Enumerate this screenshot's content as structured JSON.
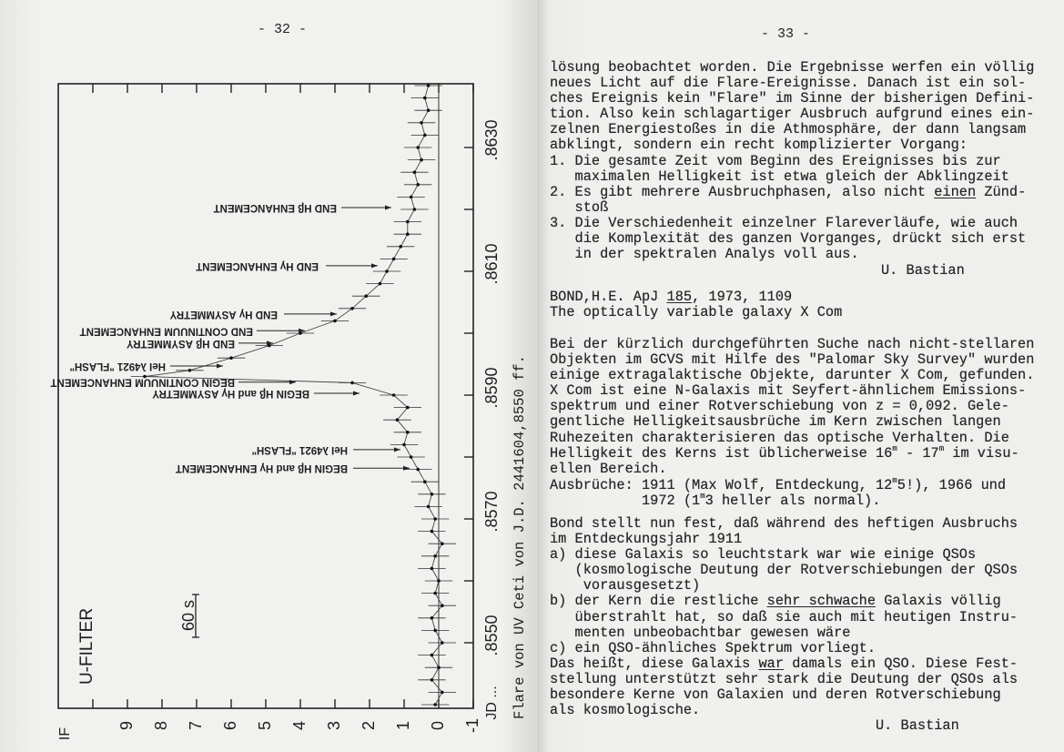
{
  "left_page": {
    "page_number": "- 32 -"
  },
  "right_page": {
    "page_number": "- 33 -",
    "blocks": [
      {
        "lines": [
          [
            {
              "t": "lösung beobachtet worden. Die Ergebnisse werfen ein völlig"
            }
          ],
          [
            {
              "t": "neues Licht auf die Flare-Ereignisse. Danach ist ein sol-"
            }
          ],
          [
            {
              "t": "ches Ereignis kein \"Flare\" im Sinne der bisherigen Defini-"
            }
          ],
          [
            {
              "t": "tion. Also kein schlagartiger Ausbruch aufgrund eines ein-"
            }
          ],
          [
            {
              "t": "zelnen Energiestoßes in die Athmosphäre, der dann langsam"
            }
          ],
          [
            {
              "t": "abklingt, sondern ein recht komplizierter Vorgang:"
            }
          ],
          [
            {
              "t": "1. Die gesamte Zeit vom Beginn des Ereignisses bis zur"
            }
          ],
          [
            {
              "t": "   maximalen Helligkeit ist etwa gleich der Abklingzeit"
            }
          ],
          [
            {
              "t": "2. Es gibt mehrere Ausbruchphasen, also nicht "
            },
            {
              "t": "einen",
              "u": true
            },
            {
              "t": " Zünd-"
            }
          ],
          [
            {
              "t": "   stoß"
            }
          ],
          [
            {
              "t": "3. Die Verschiedenheit einzelner Flareverläufe, wie auch"
            }
          ],
          [
            {
              "t": "   die Komplexität des ganzen Vorganges, drückt sich erst"
            }
          ],
          [
            {
              "t": "   in der spektralen Analys voll aus."
            }
          ]
        ]
      },
      {
        "lines": [
          [
            {
              "t": "BOND,H.E. ApJ "
            },
            {
              "t": "185",
              "u": true
            },
            {
              "t": ", 1973, 1109"
            }
          ],
          [
            {
              "t": "The optically variable galaxy X Com"
            }
          ]
        ]
      },
      {
        "lines": [
          [
            {
              "t": "Bei der kürzlich durchgeführten Suche nach nicht-stellaren"
            }
          ],
          [
            {
              "t": "Objekten im GCVS mit Hilfe des \"Palomar Sky Survey\" wurden"
            }
          ],
          [
            {
              "t": "einige extragalaktische Objekte, darunter X Com, gefunden."
            }
          ],
          [
            {
              "t": "X Com ist eine N-Galaxis mit Seyfert-ähnlichem Emissions-"
            }
          ],
          [
            {
              "t": "spektrum und einer Rotverschiebung von z = 0,092. Gele-"
            }
          ],
          [
            {
              "t": "gentliche Helligkeitsausbrüche im Kern zwischen langen"
            }
          ],
          [
            {
              "t": "Ruhezeiten charakterisieren das optische Verhalten. Die"
            }
          ],
          [
            {
              "t": "Helligkeit des Kerns ist üblicherweise 16"
            },
            {
              "t": "m",
              "sup": true
            },
            {
              "t": " - 17"
            },
            {
              "t": "m",
              "sup": true
            },
            {
              "t": " im visu-"
            }
          ],
          [
            {
              "t": "ellen Bereich."
            }
          ]
        ]
      },
      {
        "lines": [
          [
            {
              "t": "Ausbrüche: 1911 (Max Wolf, Entdeckung, 12"
            },
            {
              "t": "m",
              "sup": true
            },
            {
              "t": "5!), 1966 und"
            }
          ],
          [
            {
              "t": "           1972 (1"
            },
            {
              "t": "m",
              "sup": true
            },
            {
              "t": "3 heller als normal)."
            }
          ]
        ]
      },
      {
        "lines": [
          [
            {
              "t": "Bond stellt nun fest, daß während des heftigen Ausbruchs"
            }
          ],
          [
            {
              "t": "im Entdeckungsjahr 1911"
            }
          ],
          [
            {
              "t": "a) diese Galaxis so leuchtstark war wie einige QSOs"
            }
          ],
          [
            {
              "t": "   (kosmologische Deutung der Rotverschiebungen der QSOs"
            }
          ],
          [
            {
              "t": "    vorausgesetzt)"
            }
          ],
          [
            {
              "t": "b) der Kern die restliche "
            },
            {
              "t": "sehr schwache",
              "u": true
            },
            {
              "t": " Galaxis völlig"
            }
          ],
          [
            {
              "t": "   überstrahlt hat, so daß sie auch mit heutigen Instru-"
            }
          ],
          [
            {
              "t": "   menten unbeobachtbar gewesen wäre"
            }
          ],
          [
            {
              "t": "c) ein QSO-ähnliches Spektrum vorliegt."
            }
          ],
          [
            {
              "t": "Das heißt, diese Galaxis "
            },
            {
              "t": "war",
              "u": true
            },
            {
              "t": " damals ein QSO. Diese Fest-"
            }
          ],
          [
            {
              "t": "stellung unterstützt sehr stark die Deutung der QSOs als"
            }
          ],
          [
            {
              "t": "besondere Kerne von Galaxien und deren Rotverschiebung"
            }
          ],
          [
            {
              "t": "als kosmologische."
            }
          ]
        ]
      }
    ],
    "signatures": [
      "U. Bastian",
      "U. Bastian"
    ]
  },
  "chart_data": {
    "type": "scatter",
    "caption": "Flare von UV Ceti von J.D. 2441604,8550 ff.",
    "xlabel": "JD ...",
    "ylabel": "IF",
    "filter_label": "U-FILTER",
    "scale_bar_label": "60 s",
    "orientation": "rotated 90°, time axis vertical",
    "x_range": [
      0.8539,
      0.864
    ],
    "y_range": [
      -1,
      11
    ],
    "x_ticks": [
      0.855,
      0.857,
      0.859,
      0.861,
      0.863
    ],
    "x_tick_labels": [
      ".8550",
      ".8570",
      ".8590",
      ".8610",
      ".8630"
    ],
    "x_minor_ticks": [
      0.855,
      0.856,
      0.857,
      0.858,
      0.859,
      0.86,
      0.861,
      0.862,
      0.863
    ],
    "y_ticks": [
      -1,
      0,
      1,
      2,
      3,
      4,
      5,
      6,
      7,
      8,
      9,
      10
    ],
    "y_tick_labels": [
      "-1",
      "0",
      "1",
      "2",
      "3",
      "4",
      "5",
      "6",
      "7",
      "8",
      "9"
    ],
    "error_bar": 0.4,
    "points": [
      [
        0.854,
        0.1
      ],
      [
        0.8542,
        -0.1
      ],
      [
        0.8544,
        0.2
      ],
      [
        0.8546,
        0.0
      ],
      [
        0.8548,
        0.2
      ],
      [
        0.855,
        -0.1
      ],
      [
        0.8552,
        0.1
      ],
      [
        0.8554,
        0.2
      ],
      [
        0.8556,
        -0.1
      ],
      [
        0.8558,
        0.1
      ],
      [
        0.856,
        0.0
      ],
      [
        0.8562,
        0.2
      ],
      [
        0.8564,
        0.1
      ],
      [
        0.8566,
        -0.1
      ],
      [
        0.8568,
        0.2
      ],
      [
        0.857,
        0.1
      ],
      [
        0.8572,
        0.3
      ],
      [
        0.8574,
        0.2
      ],
      [
        0.8576,
        0.4
      ],
      [
        0.8578,
        0.6
      ],
      [
        0.858,
        0.8
      ],
      [
        0.8582,
        1.0
      ],
      [
        0.8584,
        0.9
      ],
      [
        0.8586,
        1.2
      ],
      [
        0.8588,
        0.9
      ],
      [
        0.859,
        1.3
      ],
      [
        0.8592,
        2.5
      ],
      [
        0.8593,
        8.5
      ],
      [
        0.8594,
        7.2
      ],
      [
        0.8596,
        6.0
      ],
      [
        0.8598,
        4.9
      ],
      [
        0.86,
        4.0
      ],
      [
        0.8602,
        3.0
      ],
      [
        0.8604,
        2.5
      ],
      [
        0.8606,
        2.1
      ],
      [
        0.8608,
        1.7
      ],
      [
        0.861,
        1.5
      ],
      [
        0.8612,
        1.3
      ],
      [
        0.8614,
        1.1
      ],
      [
        0.8616,
        0.9
      ],
      [
        0.8618,
        0.9
      ],
      [
        0.862,
        0.7
      ],
      [
        0.8622,
        0.8
      ],
      [
        0.8624,
        0.6
      ],
      [
        0.8626,
        0.7
      ],
      [
        0.8628,
        0.5
      ],
      [
        0.863,
        0.6
      ],
      [
        0.8632,
        0.4
      ],
      [
        0.8634,
        0.5
      ],
      [
        0.8636,
        0.3
      ],
      [
        0.8638,
        0.4
      ],
      [
        0.864,
        0.3
      ]
    ],
    "annotations": [
      {
        "label": "END Hβ ENHANCEMENT",
        "x": 0.86203
      },
      {
        "label": "END Hγ ENHANCEMENT",
        "x": 0.86109
      },
      {
        "label": "END Hγ ASYMMETRY",
        "x": 0.86031
      },
      {
        "label": "END CONTINUUM ENHANCEMENT",
        "x": 0.86004
      },
      {
        "label": "END Hβ ASYMMETRY",
        "x": 0.85984
      },
      {
        "label": "HeI λ4921 \"FLASH\"",
        "x": 0.85947
      },
      {
        "label": "BEGIN CONTINUUM ENHANCEMENT",
        "x": 0.85921
      },
      {
        "label": "BEGIN Hβ and Hγ ASYMMETRY",
        "x": 0.85903
      },
      {
        "label": "HeI λ4921 \"FLASH\"",
        "x": 0.85812
      },
      {
        "label": "BEGIN Hβ and Hγ ENHANCEMENT",
        "x": 0.85782
      }
    ]
  }
}
